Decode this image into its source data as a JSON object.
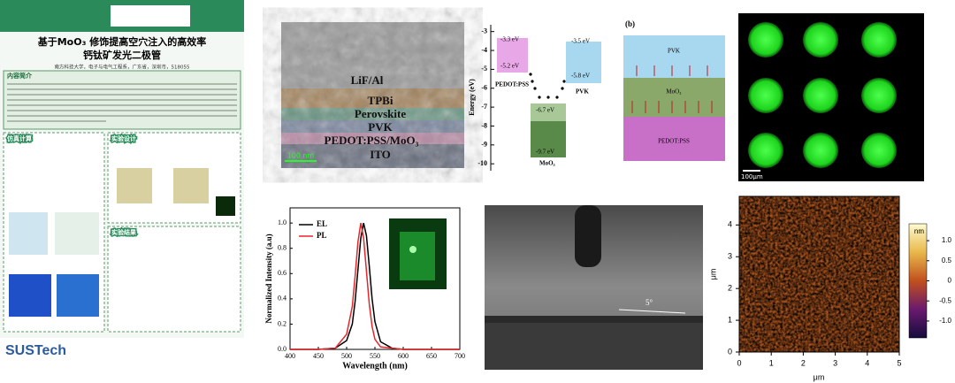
{
  "poster": {
    "title_line1": "基于MoO₃ 修饰提高空穴注入的高效率",
    "title_line2": "钙钛矿发光二极管",
    "affiliation": "南方科技大学，电子与电气工程系，广东省，深圳市，518055",
    "sections": [
      "内容简介",
      "仿真计算",
      "实验设计",
      "实验结果"
    ],
    "logo": "SUSTech"
  },
  "sem": {
    "layers": [
      "LiF/Al",
      "TPBi",
      "Perovskite",
      "PVK",
      "PEDOT:PSS/MoO₃",
      "ITO"
    ],
    "scale_bar": "100 nm"
  },
  "energy": {
    "y_label": "Energy (eV)",
    "ylim": [
      -2.5,
      -10.6
    ],
    "yticks": [
      -3,
      -4,
      -5,
      -6,
      -7,
      -8,
      -9,
      -10
    ],
    "levels": [
      "-3.3 eV",
      "-5.2 eV",
      "-3.5 eV",
      "-5.8 eV",
      "-6.7 eV",
      "-9.7 eV"
    ],
    "materials": [
      "PEDOT:PSS",
      "PVK",
      "MoO₃"
    ]
  },
  "structure": {
    "panel_label": "(b)",
    "layers": [
      "PVK",
      "MoO₃",
      "PEDOT:PSS"
    ]
  },
  "fluorescence": {
    "scale_bar": "100μm"
  },
  "spectrum": {
    "type": "line",
    "x_label": "Wavelength (nm)",
    "y_label": "Normalized Intensity (a.u)",
    "xlim": [
      400,
      700
    ],
    "xticks": [
      400,
      450,
      500,
      550,
      600,
      650,
      700
    ],
    "ylim": [
      0,
      1.12
    ],
    "yticks": [
      {
        "value": 0,
        "label": "0.0"
      },
      {
        "value": 0.2,
        "label": "0.2"
      },
      {
        "value": 0.4,
        "label": "0.4"
      },
      {
        "value": 0.6,
        "label": "0.6"
      },
      {
        "value": 0.8,
        "label": "0.8"
      },
      {
        "value": 1,
        "label": "1.0"
      }
    ],
    "x": [
      400,
      450,
      480,
      500,
      510,
      515,
      520,
      525,
      530,
      535,
      540,
      545,
      550,
      560,
      580,
      600,
      650,
      700
    ],
    "series": [
      {
        "name": "EL",
        "color": "#000000",
        "values": [
          0,
          0,
          0.01,
          0.07,
          0.2,
          0.38,
          0.63,
          0.88,
          1.0,
          0.9,
          0.66,
          0.4,
          0.22,
          0.06,
          0.01,
          0,
          0,
          0
        ]
      },
      {
        "name": "PL",
        "color": "#e8262a",
        "values": [
          0,
          0,
          0.01,
          0.12,
          0.34,
          0.58,
          0.85,
          1.0,
          0.88,
          0.62,
          0.36,
          0.18,
          0.08,
          0.02,
          0.01,
          0,
          0,
          0
        ]
      }
    ]
  },
  "contact_angle": {
    "angle": "5°"
  },
  "afm": {
    "x_label": "μm",
    "y_label": "μm",
    "xlim": [
      0,
      5
    ],
    "xticks": [
      0,
      1,
      2,
      3,
      4,
      5
    ],
    "ylim": [
      0,
      4.9
    ],
    "yticks": [
      0,
      1,
      2,
      3,
      4
    ],
    "colorbar_label": "nm",
    "colorbar_lim": [
      -1.42,
      1.42
    ],
    "colorbar_ticks": [
      {
        "value": 1,
        "label": "1.0"
      },
      {
        "value": 0.5,
        "label": "0.5"
      },
      {
        "value": 0,
        "label": "0"
      },
      {
        "value": -0.5,
        "label": "-0.5"
      },
      {
        "value": -1,
        "label": "-1.0"
      }
    ]
  }
}
